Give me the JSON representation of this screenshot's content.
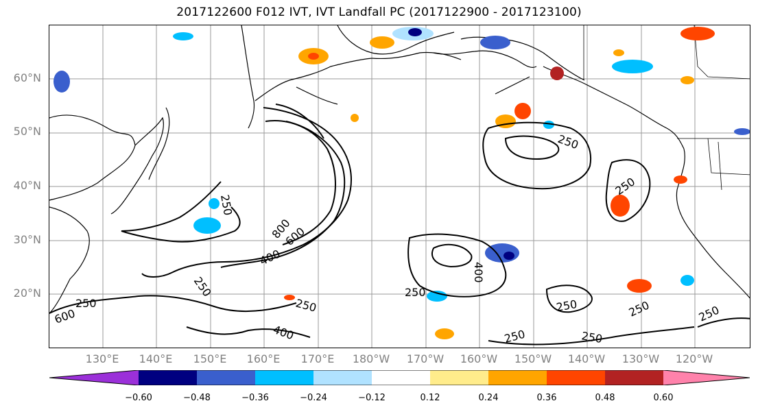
{
  "title": "2017122600 F012 IVT, IVT Landfall PC (2017122900 - 2017123100)",
  "map": {
    "lat_labels": [
      "60°N",
      "50°N",
      "40°N",
      "30°N",
      "20°N"
    ],
    "lon_labels": [
      "130°E",
      "140°E",
      "150°E",
      "160°E",
      "170°E",
      "180°W",
      "170°W",
      "160°W",
      "150°W",
      "140°W",
      "130°W",
      "120°W"
    ],
    "contour_labels": [
      "250",
      "250",
      "800",
      "600",
      "400",
      "250",
      "250",
      "400",
      "250",
      "250",
      "250",
      "250",
      "250",
      "400",
      "600",
      "250",
      "250",
      "250"
    ]
  },
  "colorbar": {
    "ticks": [
      "−0.60",
      "−0.48",
      "−0.36",
      "−0.24",
      "−0.12",
      "0.12",
      "0.24",
      "0.36",
      "0.48",
      "0.60"
    ],
    "colors": [
      "#9b30d9",
      "#000080",
      "#3a5fcd",
      "#00bfff",
      "#b0e2ff",
      "#ffffff",
      "#ffec8b",
      "#ffa500",
      "#ff4500",
      "#b22222",
      "#ff82ab"
    ]
  }
}
